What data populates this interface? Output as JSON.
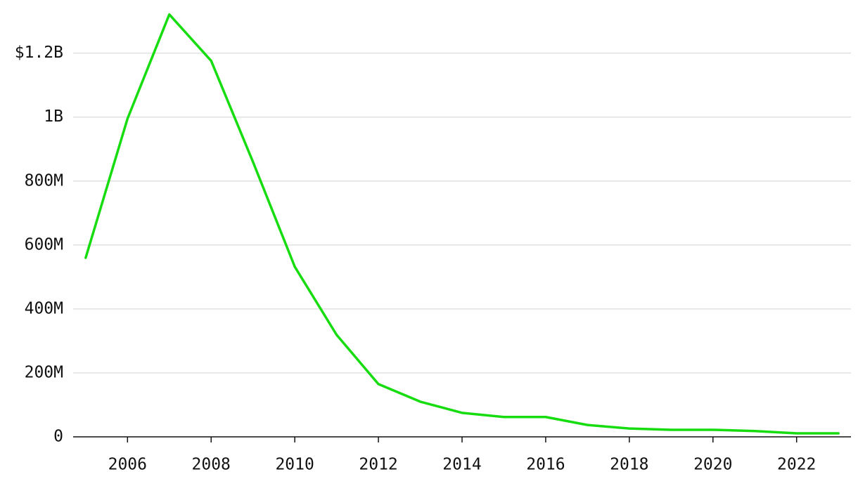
{
  "chart_data": {
    "type": "line",
    "x": [
      2005,
      2006,
      2007,
      2008,
      2009,
      2010,
      2011,
      2012,
      2013,
      2014,
      2015,
      2016,
      2017,
      2018,
      2019,
      2020,
      2021,
      2022,
      2023
    ],
    "series": [
      {
        "color": "#16dc10",
        "values": [
          560000000,
          995000000,
          1321000000,
          1176000000,
          860000000,
          532000000,
          319000000,
          165000000,
          110000000,
          75000000,
          62000000,
          62000000,
          37000000,
          26000000,
          22000000,
          22000000,
          18000000,
          11000000,
          11000000
        ]
      }
    ],
    "xlim": [
      2004.7,
      2023.3
    ],
    "xticks": [
      2006,
      2008,
      2010,
      2012,
      2014,
      2016,
      2018,
      2020,
      2022
    ],
    "ylim": [
      0,
      1320000000
    ],
    "yticks": [
      0,
      {
        "value": 200000000,
        "label": "200M"
      },
      {
        "value": 400000000,
        "label": "400M"
      },
      {
        "value": 600000000,
        "label": "600M"
      },
      {
        "value": 800000000,
        "label": "800M"
      },
      {
        "value": 1000000000,
        "label": "1B"
      },
      {
        "value": 1200000000,
        "label": "$1.2B"
      }
    ],
    "grid": true
  }
}
